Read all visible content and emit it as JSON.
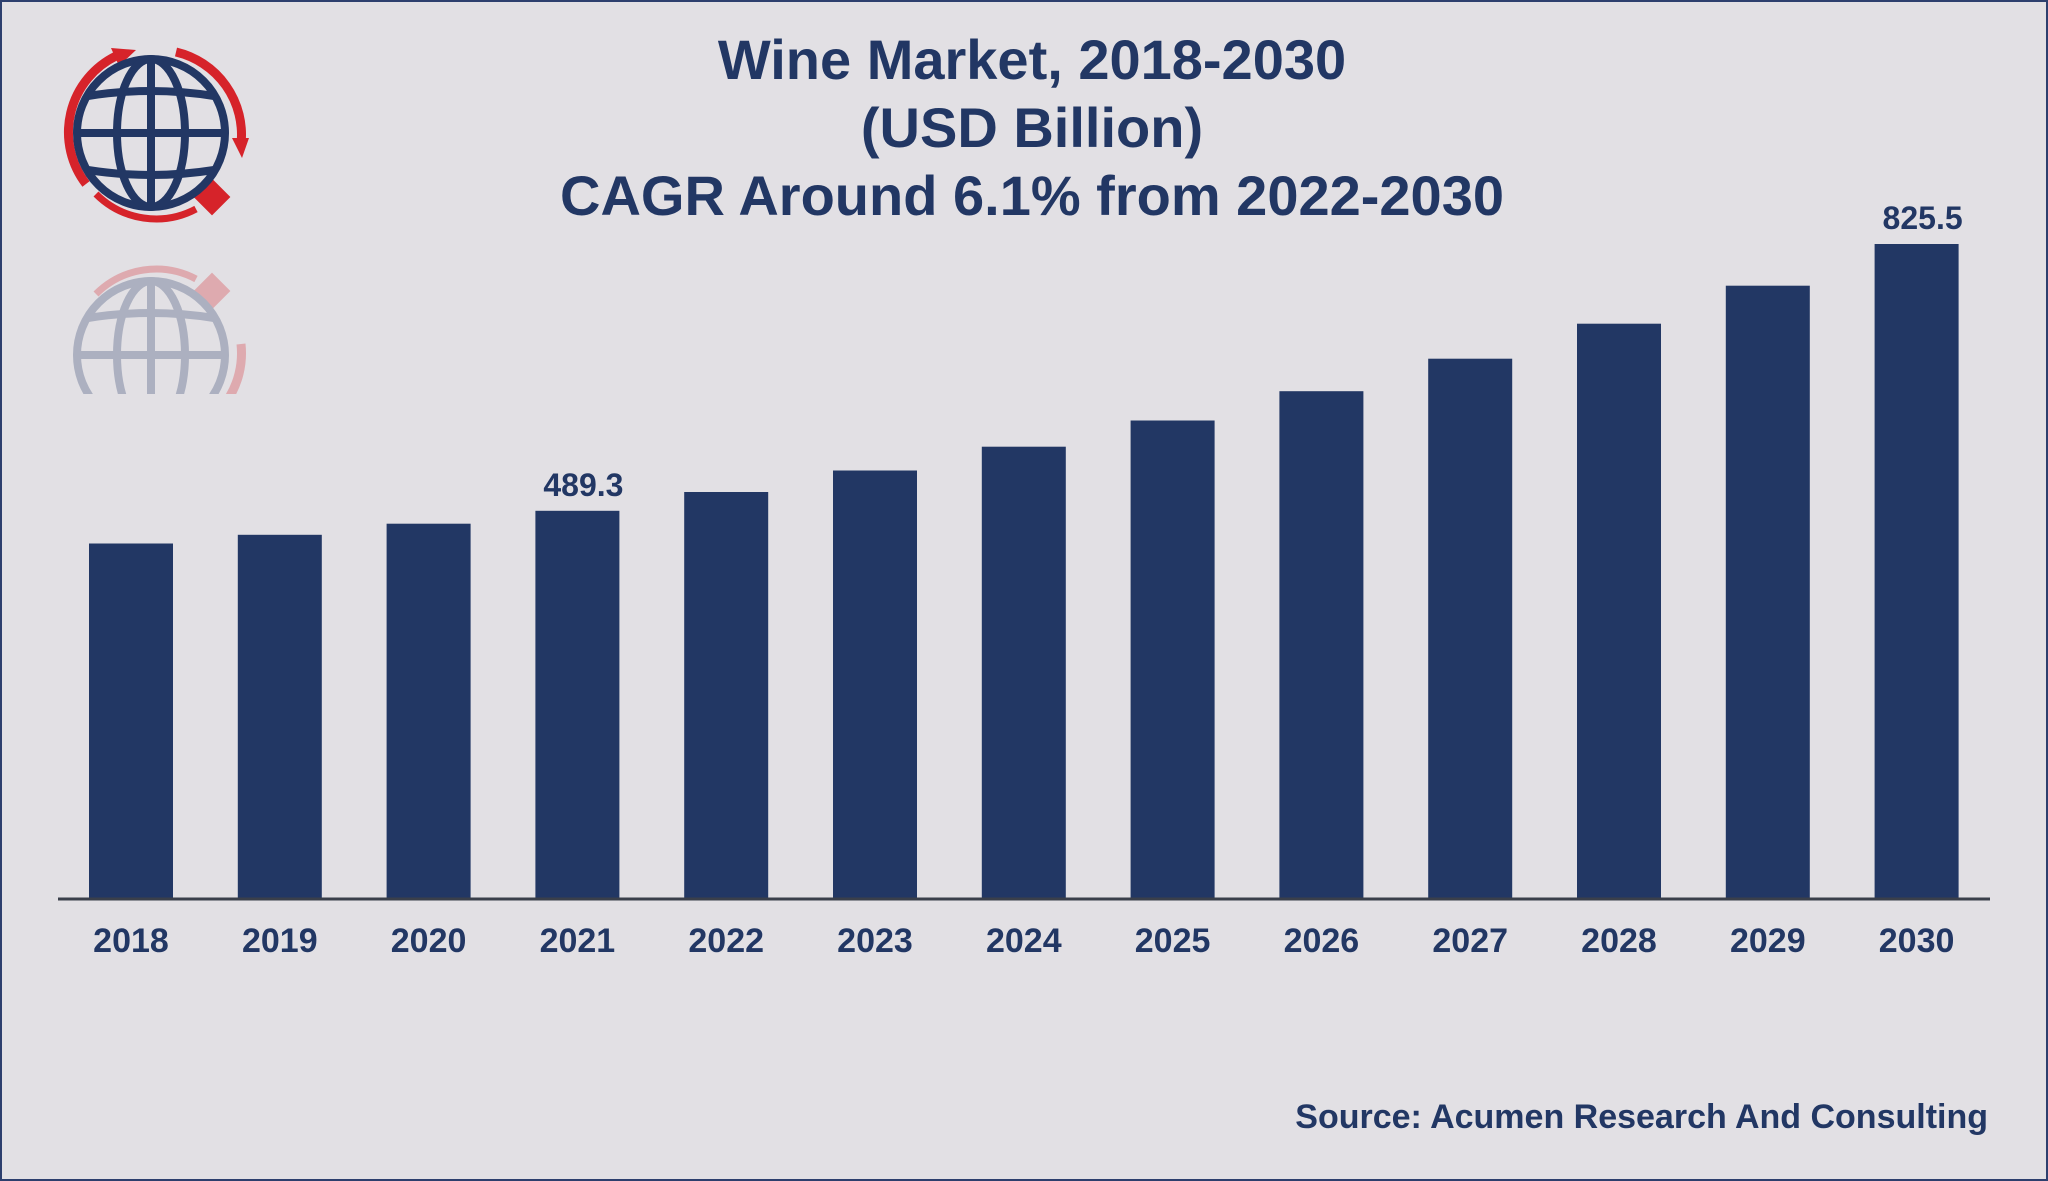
{
  "title_lines": [
    "Wine Market, 2018-2030",
    "(USD Billion)",
    "CAGR Around 6.1% from 2022-2030"
  ],
  "source": "Source: Acumen Research And Consulting",
  "colors": {
    "bar": "#223764",
    "background": "#e2e0e4",
    "text": "#223764",
    "logo_red": "#d6232a"
  },
  "logo_icon": "globe-icon",
  "chart_data": {
    "type": "bar",
    "title": "Wine Market, 2018-2030 (USD Billion) CAGR Around 6.1% from 2022-2030",
    "xlabel": "",
    "ylabel": "",
    "categories": [
      "2018",
      "2019",
      "2020",
      "2021",
      "2022",
      "2023",
      "2024",
      "2025",
      "2026",
      "2027",
      "2028",
      "2029",
      "2030"
    ],
    "values": [
      448,
      459,
      473,
      489.3,
      513,
      540,
      570,
      603,
      640,
      681,
      725,
      773,
      825.5
    ],
    "data_labels": [
      {
        "category": "2021",
        "text": "489.3"
      },
      {
        "category": "2030",
        "text": "825.5"
      }
    ],
    "ylim": [
      0,
      825.5
    ],
    "grid": false,
    "legend": "none"
  }
}
